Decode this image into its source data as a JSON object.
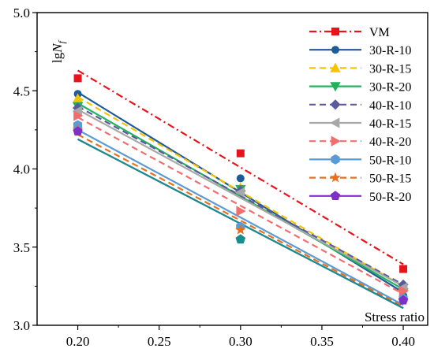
{
  "chart_data": {
    "type": "scatter",
    "xlabel": "Stress ratio",
    "ylabel_main": "lg",
    "ylabel_var": "N",
    "ylabel_sub": "f",
    "xlim": [
      0.175,
      0.415
    ],
    "ylim": [
      3.0,
      5.0
    ],
    "xticks": [
      "0.20",
      "0.25",
      "0.30",
      "0.35",
      "0.40"
    ],
    "xtick_values": [
      0.2,
      0.25,
      0.3,
      0.35,
      0.4
    ],
    "yticks": [
      "3.0",
      "3.5",
      "4.0",
      "4.5",
      "5.0"
    ],
    "ytick_values": [
      3.0,
      3.5,
      4.0,
      4.5,
      5.0
    ],
    "grid": false,
    "legend_position": "top-right",
    "series": [
      {
        "name": "VM",
        "color": "#e8141b",
        "marker": "square",
        "dash": "dashdot",
        "x": [
          0.2,
          0.3,
          0.4
        ],
        "y": [
          4.58,
          4.1,
          3.36
        ],
        "fit": [
          4.63,
          3.39
        ]
      },
      {
        "name": "30-R-10",
        "color": "#1f5a99",
        "marker": "circle",
        "dash": "solid",
        "x": [
          0.2,
          0.3,
          0.4
        ],
        "y": [
          4.48,
          3.94,
          3.19
        ],
        "fit": [
          4.49,
          3.21
        ]
      },
      {
        "name": "30-R-15",
        "color": "#f5c400",
        "marker": "triangle-up",
        "dash": "dash",
        "x": [
          0.2,
          0.3,
          0.4
        ],
        "y": [
          4.45,
          3.88,
          3.25
        ],
        "fit": [
          4.46,
          3.25
        ]
      },
      {
        "name": "30-R-20",
        "color": "#21b25c",
        "marker": "triangle-down",
        "dash": "solid",
        "x": [
          0.2,
          0.3,
          0.4
        ],
        "y": [
          4.4,
          3.87,
          3.21
        ],
        "fit": [
          4.42,
          3.23
        ]
      },
      {
        "name": "40-R-10",
        "color": "#5b5b9c",
        "marker": "diamond",
        "dash": "dash",
        "x": [
          0.2,
          0.3,
          0.4
        ],
        "y": [
          4.39,
          3.86,
          3.26
        ],
        "fit": [
          4.4,
          3.26
        ]
      },
      {
        "name": "40-R-15",
        "color": "#a8a8a8",
        "marker": "triangle-left",
        "dash": "solid",
        "x": [
          0.2,
          0.3,
          0.4
        ],
        "y": [
          4.37,
          3.85,
          3.24
        ],
        "fit": [
          4.38,
          3.25
        ]
      },
      {
        "name": "40-R-20",
        "color": "#f26d6d",
        "marker": "triangle-right",
        "dash": "dash",
        "x": [
          0.2,
          0.3,
          0.4
        ],
        "y": [
          4.34,
          3.73,
          3.22
        ],
        "fit": [
          4.33,
          3.2
        ]
      },
      {
        "name": "50-R-10",
        "color": "#5b9bd5",
        "marker": "hexagon",
        "dash": "solid",
        "x": [
          0.2,
          0.3,
          0.4
        ],
        "y": [
          4.28,
          3.63,
          3.17
        ],
        "fit": [
          4.25,
          3.13
        ]
      },
      {
        "name": "50-R-15",
        "color": "#e8701c",
        "marker": "star",
        "dash": "dash",
        "x": [
          0.2,
          0.3,
          0.4
        ],
        "y": [
          4.25,
          3.61,
          3.16
        ],
        "fit": [
          4.22,
          3.12
        ]
      },
      {
        "name": "50-R-20",
        "color": "#7d2fc8",
        "marker": "pentagon",
        "dash": "solid",
        "x": [
          0.2,
          0.3,
          0.4
        ],
        "y": [
          4.24,
          3.55,
          3.16
        ],
        "fit": [
          4.19,
          3.11
        ]
      }
    ],
    "extra_fit_lines": [
      {
        "color": "#178e8e",
        "dash": "solid",
        "fit": [
          4.19,
          3.11
        ]
      }
    ],
    "extra_points": [
      {
        "color": "#178e8e",
        "marker": "pentagon",
        "x": 0.3,
        "y": 3.55
      }
    ]
  }
}
